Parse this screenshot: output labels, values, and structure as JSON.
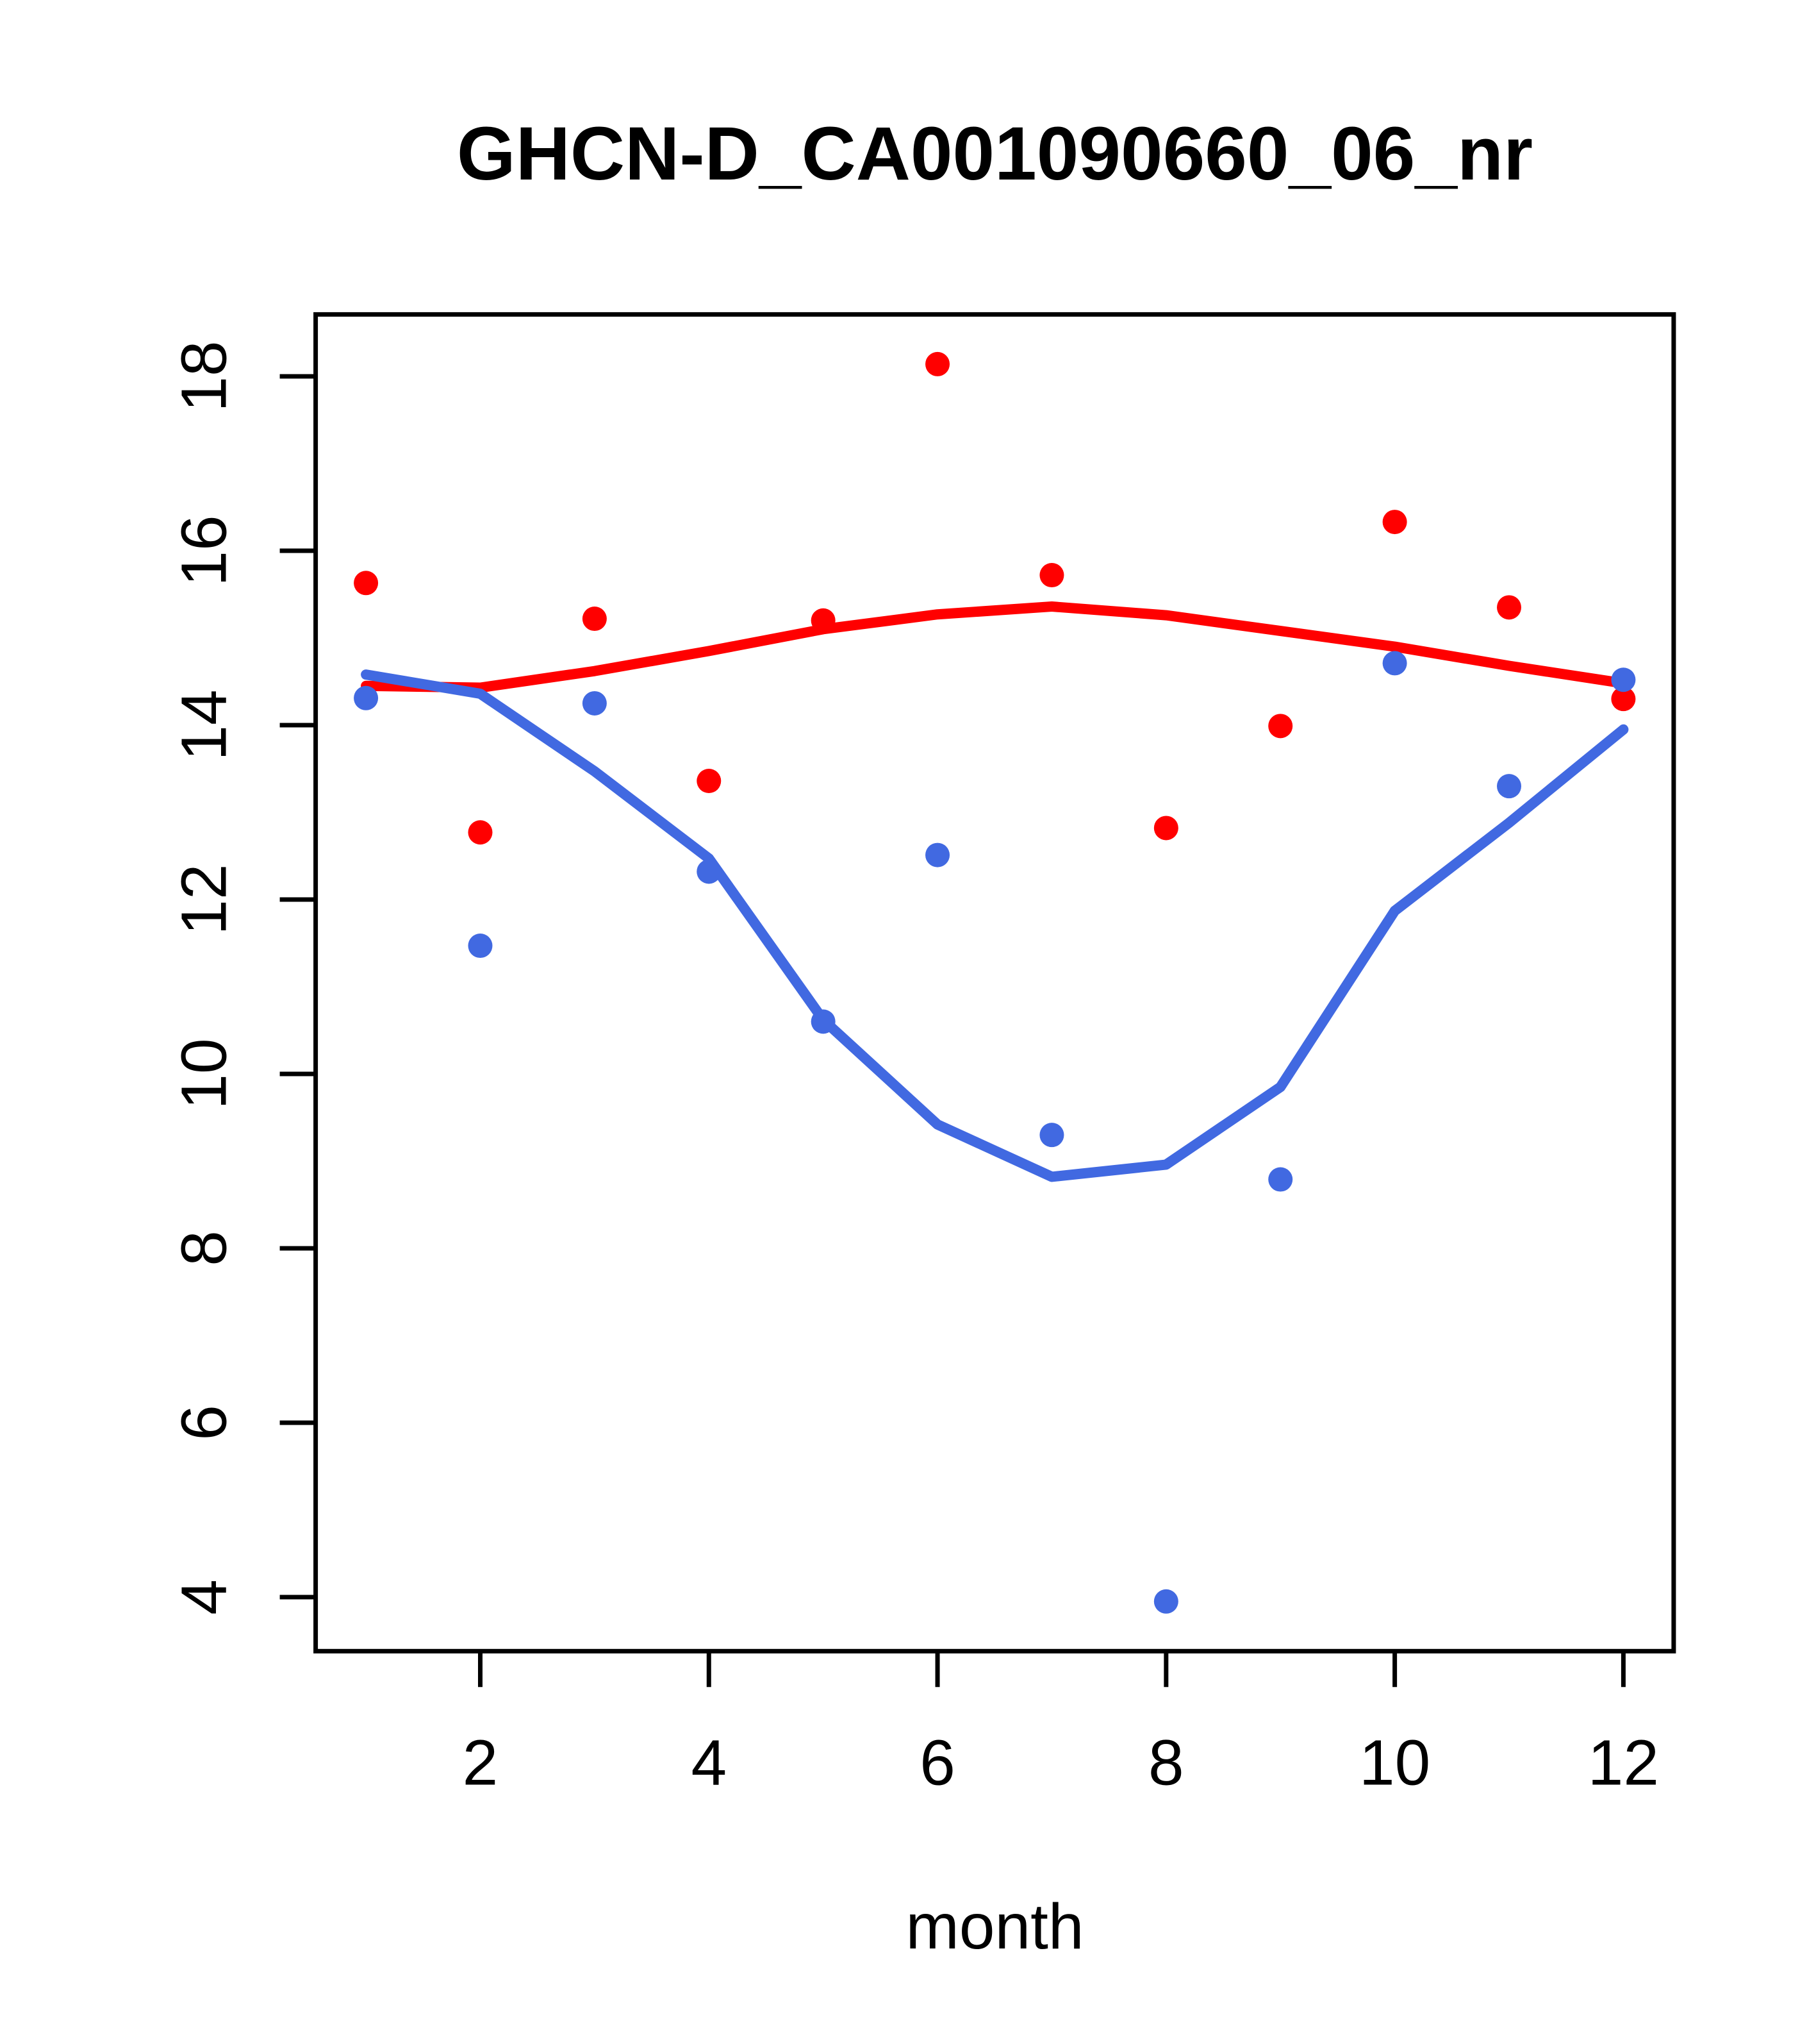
{
  "chart_data": {
    "type": "scatter",
    "title": "GHCN-D_CA001090660_06_nr",
    "xlabel": "month",
    "ylabel": "",
    "xlim": [
      0.56,
      12.44
    ],
    "ylim": [
      3.38,
      18.71
    ],
    "x_ticks": [
      2,
      4,
      6,
      8,
      10,
      12
    ],
    "y_ticks": [
      4,
      6,
      8,
      10,
      12,
      14,
      16,
      18
    ],
    "grid": "off",
    "legend": "none",
    "x": [
      1,
      2,
      3,
      4,
      5,
      6,
      7,
      8,
      9,
      10,
      11,
      12
    ],
    "series": [
      {
        "id": "red_points",
        "kind": "points",
        "name": "red monthly values",
        "color": "#ff0000",
        "values": [
          15.63,
          12.77,
          15.22,
          13.36,
          15.2,
          18.14,
          15.72,
          12.82,
          13.99,
          16.33,
          15.35,
          14.3
        ]
      },
      {
        "id": "blue_points",
        "kind": "points",
        "name": "blue monthly values",
        "color": "#4169e1",
        "values": [
          14.31,
          11.47,
          14.25,
          12.32,
          10.6,
          12.51,
          9.3,
          3.95,
          8.79,
          14.71,
          13.3,
          14.52
        ]
      },
      {
        "id": "red_loess",
        "kind": "line",
        "name": "red smooth curve",
        "color": "#ff0000",
        "values": [
          14.45,
          14.43,
          14.62,
          14.85,
          15.1,
          15.27,
          15.36,
          15.26,
          15.08,
          14.9,
          14.68,
          14.48
        ]
      },
      {
        "id": "blue_loess",
        "kind": "line",
        "name": "blue smooth curve",
        "color": "#4169e1",
        "values": [
          14.58,
          14.36,
          13.47,
          12.47,
          10.62,
          9.42,
          8.82,
          8.96,
          9.85,
          11.87,
          12.88,
          13.95
        ]
      }
    ],
    "axis_color": "#000000"
  }
}
